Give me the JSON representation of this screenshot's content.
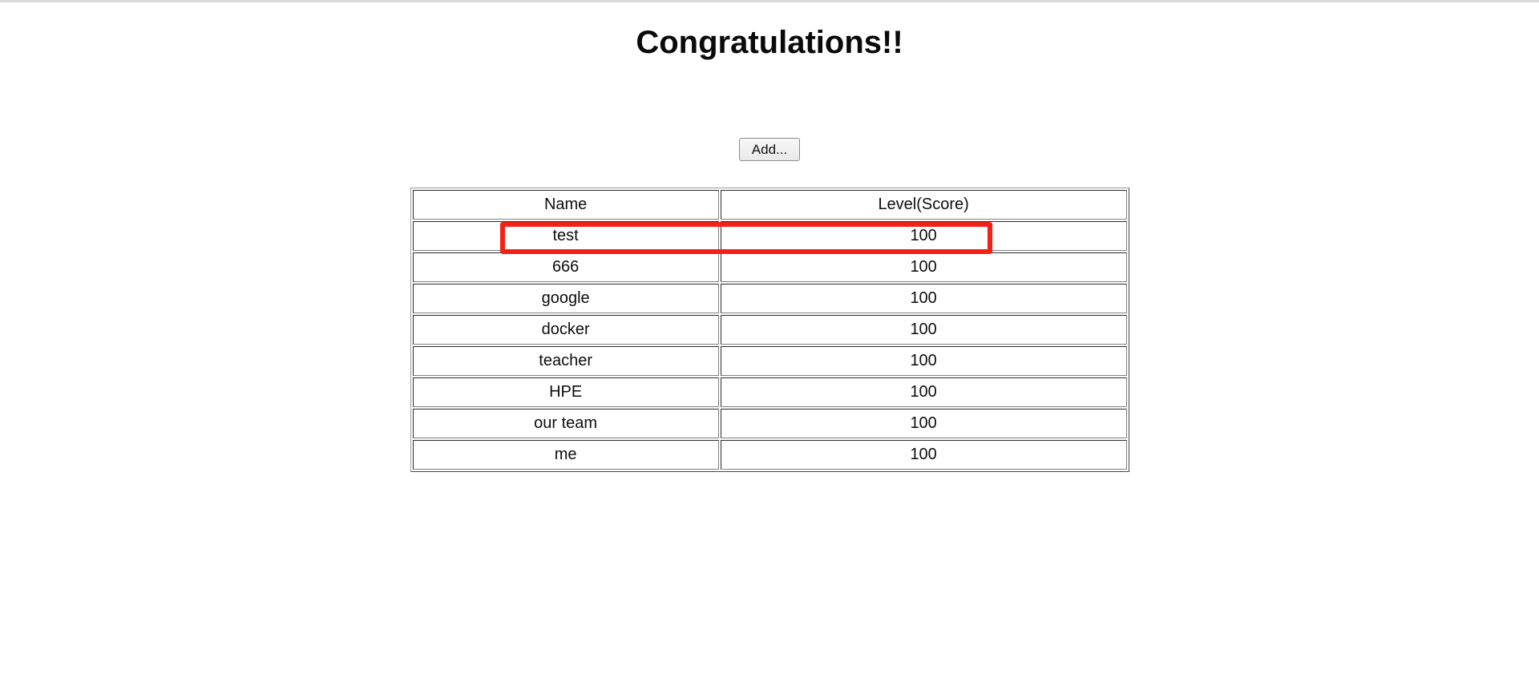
{
  "page": {
    "title": "Congratulations!!"
  },
  "toolbar": {
    "add_button_label": "Add..."
  },
  "score_table": {
    "columns": [
      "Name",
      "Level(Score)"
    ],
    "rows": [
      {
        "name": "test",
        "score": "100"
      },
      {
        "name": "666",
        "score": "100"
      },
      {
        "name": "google",
        "score": "100"
      },
      {
        "name": "docker",
        "score": "100"
      },
      {
        "name": "teacher",
        "score": "100"
      },
      {
        "name": "HPE",
        "score": "100"
      },
      {
        "name": "our team",
        "score": "100"
      },
      {
        "name": "me",
        "score": "100"
      }
    ]
  },
  "annotation": {
    "highlighted_row_name": "test",
    "highlight_color": "#f32116"
  }
}
